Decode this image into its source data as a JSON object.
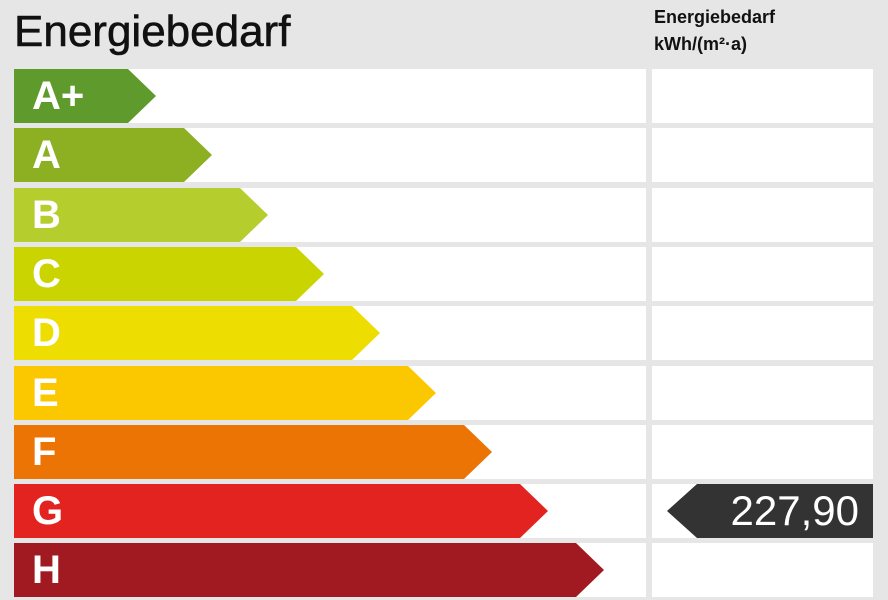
{
  "title": "Energiebedarf",
  "column_header": {
    "line1": "Energiebedarf",
    "line2": "kWh/(m²·a)"
  },
  "classes": [
    {
      "label": "A+",
      "color": "#5f9b2c"
    },
    {
      "label": "A",
      "color": "#8cb021"
    },
    {
      "label": "B",
      "color": "#b6cd2e"
    },
    {
      "label": "C",
      "color": "#cad400"
    },
    {
      "label": "D",
      "color": "#eedd00"
    },
    {
      "label": "E",
      "color": "#fbc800"
    },
    {
      "label": "F",
      "color": "#ec7405"
    },
    {
      "label": "G",
      "color": "#e3231f"
    },
    {
      "label": "H",
      "color": "#a11a22"
    }
  ],
  "indicator": {
    "value": "227,90",
    "class": "G",
    "color": "#333333"
  }
}
